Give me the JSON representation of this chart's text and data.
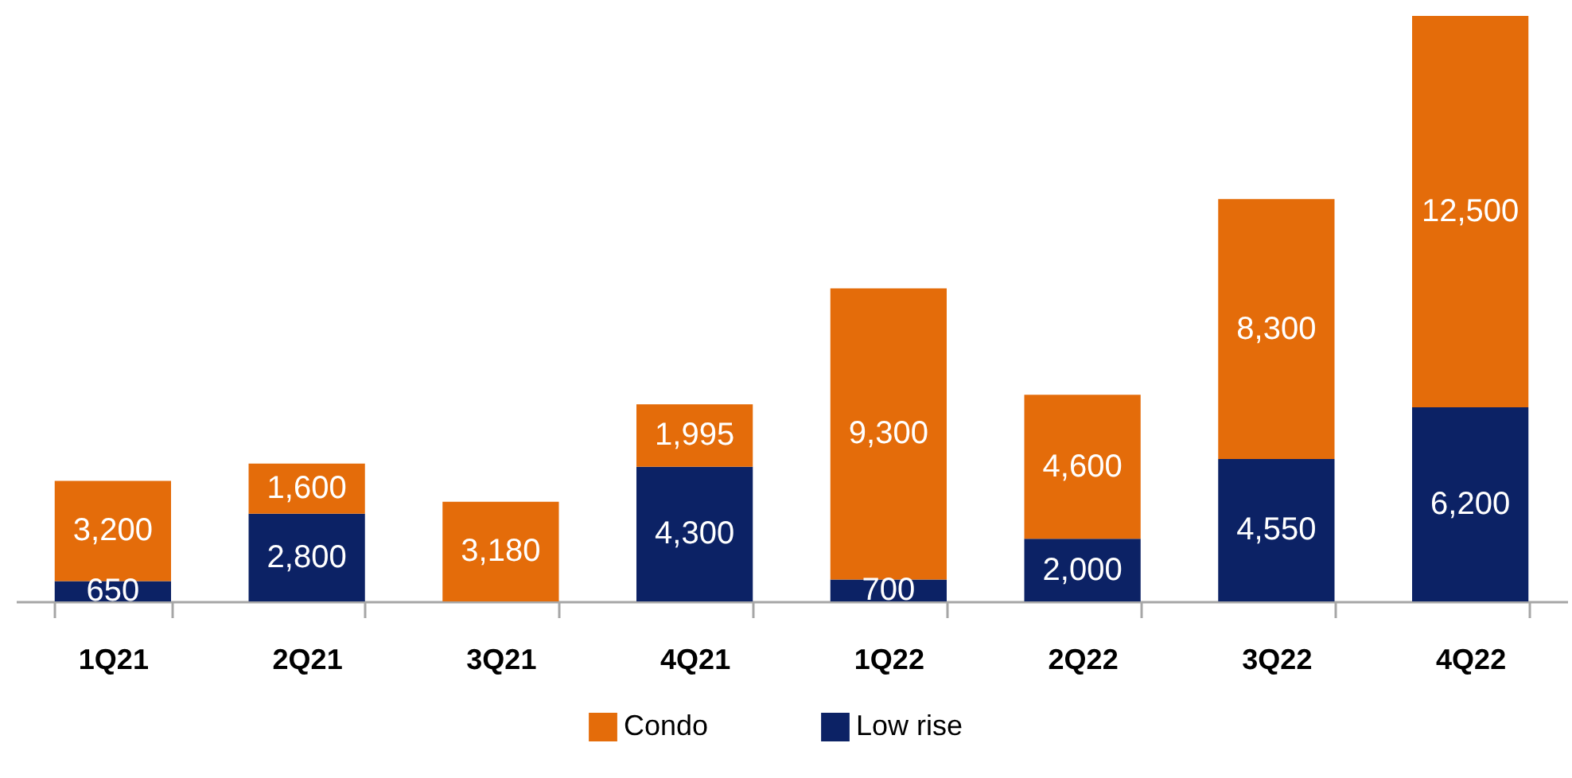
{
  "chart_data": {
    "type": "bar",
    "stacked": true,
    "legend": "bottom",
    "categories": [
      "1Q21",
      "2Q21",
      "3Q21",
      "4Q21",
      "1Q22",
      "2Q22",
      "3Q22",
      "4Q22"
    ],
    "series": [
      {
        "name": "Low rise",
        "color": "#0c2265",
        "values": [
          650,
          2800,
          null,
          4300,
          700,
          2000,
          4550,
          6200
        ],
        "value_labels": [
          "650",
          "2,800",
          null,
          "4,300",
          "700",
          "2,000",
          "4,550",
          "6,200"
        ]
      },
      {
        "name": "Condo",
        "color": "#e46c0a",
        "values": [
          3200,
          1600,
          3180,
          1995,
          9300,
          4600,
          8300,
          12500
        ],
        "value_labels": [
          "3,200",
          "1,600",
          "3,180",
          "1,995",
          "9,300",
          "4,600",
          "8,300",
          "12,500"
        ]
      }
    ]
  }
}
